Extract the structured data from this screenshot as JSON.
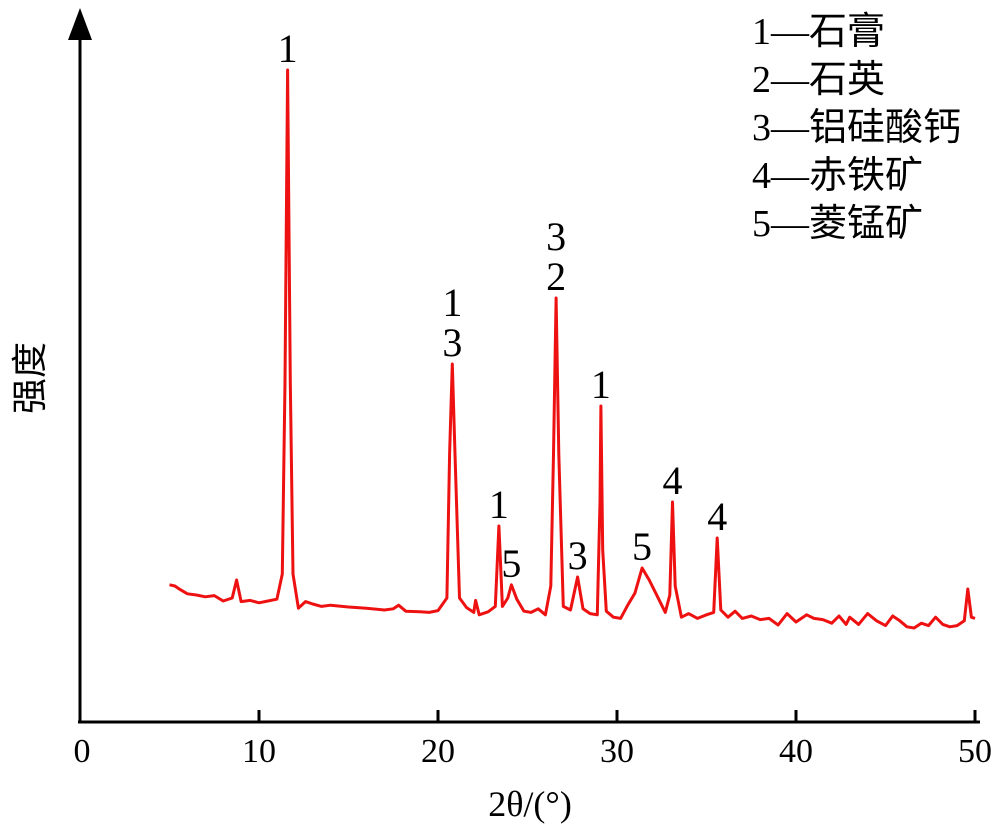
{
  "chart_data": {
    "type": "line",
    "xlabel": "2θ/(°)",
    "ylabel": "强度",
    "xlim": [
      0,
      50
    ],
    "xticks": [
      "0",
      "10",
      "20",
      "30",
      "40",
      "50"
    ],
    "y_ticks_shown": false,
    "legend_position": "top-right",
    "line_color": "#ee1111",
    "legend": [
      "1—石膏",
      "2—石英",
      "3—铝硅酸钙",
      "4—赤铁矿",
      "5—菱锰矿"
    ],
    "peaks": [
      {
        "x": 11.6,
        "labels": [
          "1"
        ]
      },
      {
        "x": 20.8,
        "labels": [
          "1",
          "3"
        ]
      },
      {
        "x": 23.4,
        "labels": [
          "1"
        ]
      },
      {
        "x": 24.1,
        "labels": [
          "5"
        ]
      },
      {
        "x": 26.6,
        "labels": [
          "3",
          "2"
        ]
      },
      {
        "x": 27.8,
        "labels": [
          "3"
        ]
      },
      {
        "x": 29.1,
        "labels": [
          "1"
        ]
      },
      {
        "x": 31.4,
        "labels": [
          "5"
        ]
      },
      {
        "x": 33.1,
        "labels": [
          "4"
        ]
      },
      {
        "x": 35.6,
        "labels": [
          "4"
        ]
      }
    ],
    "series": [
      {
        "color": "#ee1111",
        "x": [
          5.0,
          5.3,
          5.6,
          6.0,
          6.5,
          7.0,
          7.5,
          8.0,
          8.5,
          8.75,
          9.0,
          9.5,
          10.0,
          10.5,
          11.0,
          11.3,
          11.45,
          11.6,
          11.75,
          11.9,
          12.2,
          12.6,
          13.0,
          13.5,
          14.0,
          15.0,
          16.0,
          17.0,
          17.5,
          17.8,
          18.2,
          19.0,
          19.5,
          20.0,
          20.5,
          20.65,
          20.8,
          20.95,
          21.2,
          21.6,
          22.0,
          22.1,
          22.3,
          22.8,
          23.2,
          23.4,
          23.6,
          23.9,
          24.1,
          24.4,
          24.8,
          25.2,
          25.6,
          26.0,
          26.3,
          26.45,
          26.6,
          26.75,
          27.0,
          27.4,
          27.8,
          28.1,
          28.5,
          28.9,
          29.05,
          29.1,
          29.2,
          29.4,
          29.8,
          30.2,
          30.6,
          31.0,
          31.4,
          31.8,
          32.2,
          32.7,
          32.95,
          33.1,
          33.25,
          33.6,
          34.0,
          34.5,
          35.0,
          35.4,
          35.6,
          35.8,
          36.2,
          36.6,
          37.0,
          37.5,
          38.0,
          38.5,
          39.0,
          39.5,
          40.0,
          40.6,
          41.0,
          41.5,
          42.0,
          42.4,
          42.8,
          43.0,
          43.5,
          44.0,
          44.5,
          45.0,
          45.4,
          45.8,
          46.2,
          46.6,
          47.0,
          47.4,
          47.8,
          48.2,
          48.6,
          49.0,
          49.4,
          49.6,
          49.8,
          50.0
        ],
        "y": [
          6.2,
          6.0,
          5.4,
          4.7,
          4.5,
          4.2,
          4.4,
          3.5,
          4.0,
          7.0,
          3.4,
          3.6,
          3.2,
          3.5,
          3.8,
          8.0,
          40.0,
          92.0,
          40.0,
          8.0,
          2.3,
          3.4,
          3.0,
          2.6,
          2.8,
          2.5,
          2.3,
          2.0,
          2.2,
          2.8,
          1.8,
          1.7,
          1.6,
          1.9,
          4.0,
          28.0,
          43.0,
          28.0,
          4.0,
          2.4,
          1.6,
          3.6,
          1.2,
          1.7,
          2.6,
          16.0,
          2.6,
          4.0,
          6.2,
          3.8,
          1.8,
          1.6,
          2.2,
          1.2,
          6.0,
          28.0,
          54.0,
          28.0,
          2.6,
          2.0,
          7.5,
          2.2,
          1.4,
          1.2,
          20.0,
          36.0,
          12.0,
          1.8,
          0.8,
          0.6,
          2.8,
          4.8,
          9.0,
          7.0,
          4.6,
          1.6,
          4.5,
          20.0,
          6.0,
          0.8,
          1.4,
          0.6,
          1.2,
          1.6,
          14.0,
          2.0,
          0.8,
          1.8,
          0.6,
          1.0,
          0.4,
          0.6,
          -0.5,
          1.4,
          0.0,
          1.2,
          0.6,
          0.4,
          -0.2,
          1.0,
          -0.4,
          0.8,
          -0.4,
          1.4,
          0.2,
          -0.6,
          1.0,
          0.2,
          -0.8,
          -1.0,
          -0.2,
          -0.6,
          0.8,
          -0.4,
          -0.8,
          -0.6,
          0.2,
          5.5,
          0.8,
          0.6
        ]
      }
    ]
  }
}
